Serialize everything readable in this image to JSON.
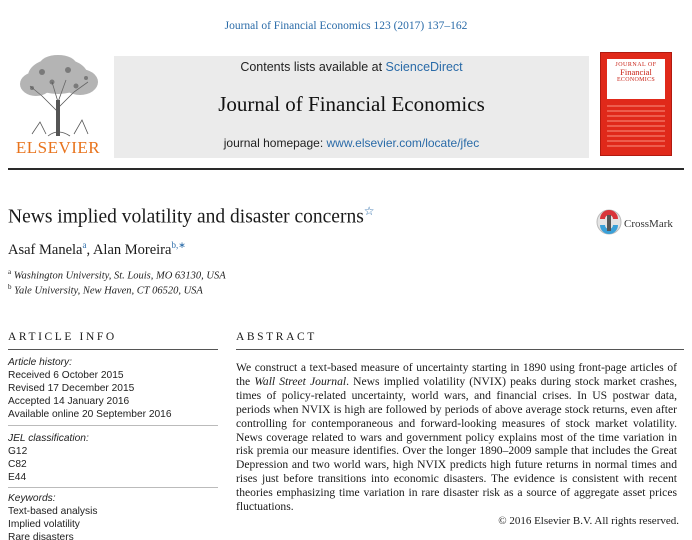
{
  "header": {
    "journal_ref": "Journal of Financial Economics 123 (2017) 137–162",
    "contents_prefix": "Contents lists available at ",
    "contents_link": "ScienceDirect",
    "journal_title": "Journal of Financial Economics",
    "homepage_prefix": "journal homepage: ",
    "homepage_link": "www.elsevier.com/locate/jfec",
    "publisher": "ELSEVIER",
    "cover": {
      "line1": "JOURNAL OF",
      "line2": "Financial",
      "line3": "ECONOMICS"
    }
  },
  "article": {
    "title": "News implied volatility and disaster concerns",
    "title_mark": "☆",
    "crossmark": "CrossMark",
    "authors": [
      {
        "name": "Asaf Manela",
        "sup": "a"
      },
      {
        "name": "Alan Moreira",
        "sup": "b,∗"
      }
    ],
    "author_separator": ", ",
    "affiliations": [
      {
        "sup": "a",
        "text": "Washington University, St. Louis, MO 63130, USA"
      },
      {
        "sup": "b",
        "text": "Yale University, New Haven, CT 06520, USA"
      }
    ]
  },
  "article_info": {
    "heading": "ARTICLE INFO",
    "history_label": "Article history:",
    "history": [
      "Received 6 October 2015",
      "Revised 17 December 2015",
      "Accepted 14 January 2016",
      "Available online 20 September 2016"
    ],
    "jel_label": "JEL classification:",
    "jel": [
      "G12",
      "C82",
      "E44"
    ],
    "keywords_label": "Keywords:",
    "keywords": [
      "Text-based analysis",
      "Implied volatility",
      "Rare disasters"
    ]
  },
  "abstract": {
    "heading": "ABSTRACT",
    "part1": "We construct a text-based measure of uncertainty starting in 1890 using front-page articles of the ",
    "wsj": "Wall Street Journal",
    "part2": ". News implied volatility (NVIX) peaks during stock market crashes, times of policy-related uncertainty, world wars, and financial crises. In US postwar data, periods when NVIX is high are followed by periods of above average stock returns, even after controlling for contemporaneous and forward-looking measures of stock market volatility. News coverage related to wars and government policy explains most of the time variation in risk premia our measure identifies. Over the longer 1890–2009 sample that includes the Great Depression and two world wars, high NVIX predicts high future returns in normal times and rises just before transitions into economic disasters. The evidence is consistent with recent theories emphasizing time variation in rare disaster risk as a source of aggregate asset prices fluctuations.",
    "copyright": "© 2016 Elsevier B.V. All rights reserved."
  },
  "colors": {
    "link": "#2a6ba8",
    "elsevier_orange": "#e8731c",
    "cover_red": "#e0291a",
    "header_gray": "#ebebeb"
  }
}
